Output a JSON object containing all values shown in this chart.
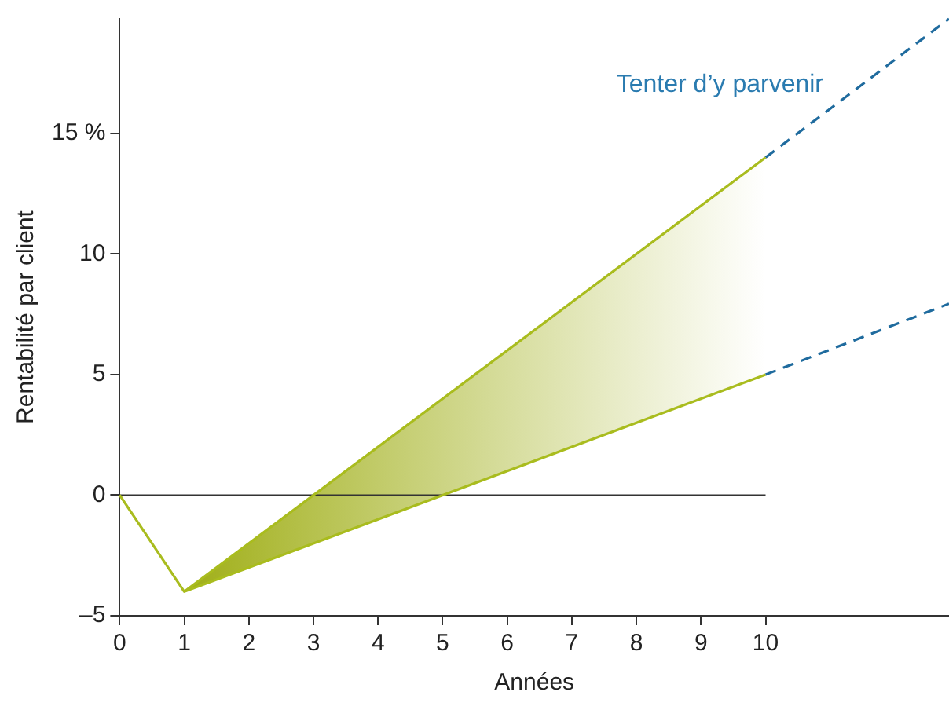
{
  "chart_data": {
    "type": "line",
    "xlabel": "Années",
    "ylabel": "Rentabilité par client",
    "xlim": [
      0,
      12.84
    ],
    "ylim": [
      -5,
      19.75
    ],
    "xticks": [
      0,
      1,
      2,
      3,
      4,
      5,
      6,
      7,
      8,
      9,
      10
    ],
    "yticks": [
      {
        "value": -5,
        "label": "–5"
      },
      0,
      5,
      10,
      {
        "value": 15,
        "label": "15 %"
      }
    ],
    "grid": false,
    "legend": false,
    "marker": "none",
    "series": [
      {
        "x": [
          0,
          1,
          10
        ],
        "values": [
          0,
          -4,
          14
        ],
        "color": "#a9bc1e",
        "line_style": "solid"
      },
      {
        "x": [
          1,
          10
        ],
        "values": [
          -4,
          5
        ],
        "lower": [
          -4,
          5
        ],
        "upper": [
          -4,
          14
        ],
        "color": "#a9bc1e",
        "line_style": "solid"
      },
      {
        "x": [
          10,
          12.84
        ],
        "values": [
          14,
          19.75
        ],
        "color": "#1f6b9e",
        "line_style": "dashed"
      },
      {
        "x": [
          10,
          12.84
        ],
        "values": [
          5,
          7.94
        ],
        "color": "#1f6b9e",
        "line_style": "dashed"
      }
    ],
    "ref_lines": [
      {
        "axis": "y",
        "value": 0,
        "color": "#333333",
        "line_style": "solid"
      }
    ],
    "annotations": [
      "Tenter d’y parvenir"
    ]
  }
}
